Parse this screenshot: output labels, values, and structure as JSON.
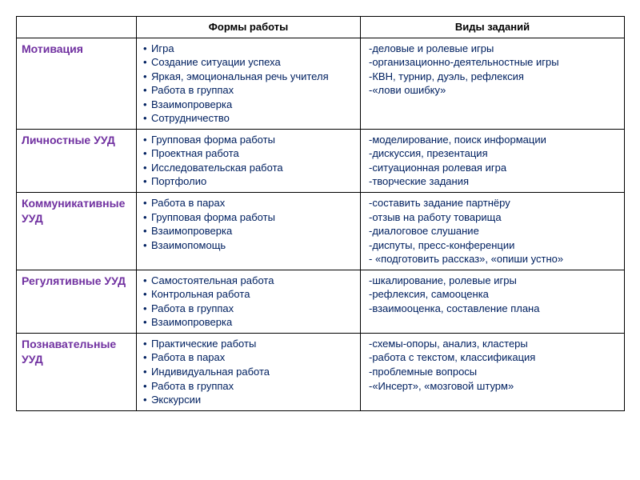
{
  "headers": {
    "cat": "",
    "forms": "Формы работы",
    "tasks": "Виды заданий"
  },
  "colors": {
    "category": "#7030a0",
    "body_text": "#002060",
    "border": "#000000"
  },
  "font_sizes": {
    "header": 13,
    "category": 14,
    "body": 13
  },
  "rows": [
    {
      "category": "Мотивация",
      "forms": [
        "Игра",
        "Создание ситуации успеха",
        "Яркая, эмоциональная речь учителя",
        "Работа в группах",
        "Взаимопроверка",
        "Сотрудничество"
      ],
      "tasks": [
        "-деловые и ролевые  игры",
        "-организационно-деятельностные игры",
        "-КВН, турнир, дуэль, рефлексия",
        "-«лови ошибку»"
      ]
    },
    {
      "category": "Личностные УУД",
      "forms": [
        "Групповая форма работы",
        "Проектная работа",
        "Исследовательская работа",
        "Портфолио"
      ],
      "tasks": [
        "-моделирование, поиск информации",
        "-дискуссия, презентация",
        "-ситуационная ролевая игра",
        "-творческие задания"
      ]
    },
    {
      "category": "Коммуникативные УУД",
      "forms": [
        "Работа в парах",
        "Групповая форма работы",
        "Взаимопроверка",
        "Взаимопомощь"
      ],
      "tasks": [
        "-составить задание партнёру",
        "-отзыв на работу товарища",
        "-диалоговое слушание",
        "-диспуты, пресс-конференции",
        "-  «подготовить рассказ»,  «опиши устно»"
      ]
    },
    {
      "category": "Регулятивные УУД",
      "forms": [
        "Самостоятельная работа",
        "Контрольная работа",
        "Работа в группах",
        "Взаимопроверка"
      ],
      "tasks": [
        "-шкалирование, ролевые игры",
        "-рефлексия, самооценка",
        "-взаимооценка, составление плана"
      ]
    },
    {
      "category": "Познавательные УУД",
      "forms": [
        "Практические работы",
        "Работа в парах",
        "Индивидуальная работа",
        "Работа в группах",
        "Экскурсии"
      ],
      "tasks": [
        "-схемы-опоры, анализ, кластеры",
        "-работа с текстом, классификация",
        "-проблемные вопросы",
        "-«Инсерт», «мозговой штурм»"
      ]
    }
  ]
}
